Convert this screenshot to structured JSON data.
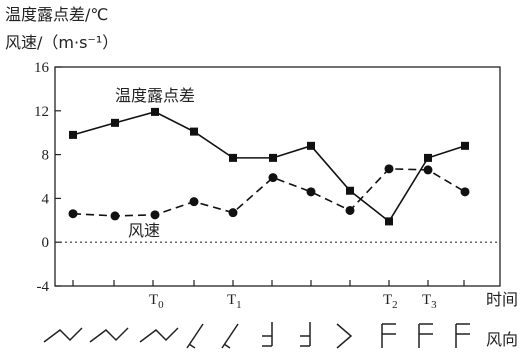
{
  "chart_data": {
    "type": "line",
    "y_axis_label_line1": "温度露点差/℃",
    "y_axis_label_line2": "风速/（m·s⁻¹）",
    "ylim": [
      -4,
      16
    ],
    "y_ticks": [
      "16",
      "12",
      "8",
      "4",
      "0",
      "-4"
    ],
    "x_axis_label": "时间",
    "wind_dir_label": "风向",
    "time_markers": [
      {
        "main": "T",
        "sub": "0",
        "index": 2
      },
      {
        "main": "T",
        "sub": "1",
        "index": 4
      },
      {
        "main": "T",
        "sub": "2",
        "index": 8
      },
      {
        "main": "T",
        "sub": "3",
        "index": 9
      }
    ],
    "series": [
      {
        "name": "温度露点差",
        "style": "solid",
        "marker": "square",
        "values": [
          9.8,
          10.9,
          11.9,
          10.1,
          7.7,
          7.7,
          8.8,
          4.7,
          1.9,
          7.7,
          8.8
        ]
      },
      {
        "name": "风速",
        "style": "dashed",
        "marker": "circle",
        "values": [
          2.6,
          2.4,
          2.5,
          3.7,
          2.7,
          5.9,
          4.6,
          2.9,
          6.7,
          6.6,
          4.6
        ]
      }
    ],
    "reference_line": {
      "y": 0,
      "style": "dotted"
    },
    "wind_direction_icons": [
      "wind-ne-icon",
      "wind-ne-icon",
      "wind-ne-icon",
      "wind-n-icon",
      "wind-n-icon",
      "wind-w-icon",
      "wind-w-icon",
      "wind-nw-icon",
      "wind-sw-icon",
      "wind-sw-icon",
      "wind-sw-icon"
    ],
    "grid": false
  }
}
